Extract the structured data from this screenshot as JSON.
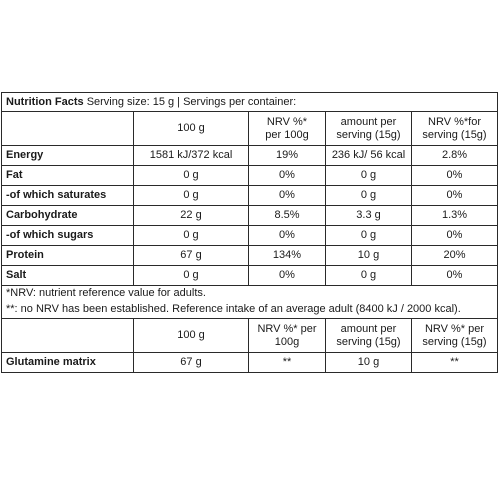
{
  "title": "Nutrition Facts",
  "serving_info": "Serving size: 15 g | Servings per container:",
  "header": {
    "col_100g": "100 g",
    "col_nrv100_l1": "NRV %*",
    "col_nrv100_l2": "per 100g",
    "col_serv_l1": "amount per",
    "col_serv_l2": "serving (15g)",
    "col_nrvserv_l1": "NRV %*for",
    "col_nrvserv_l2": "serving (15g)"
  },
  "rows": [
    {
      "name": "Energy",
      "per100": "1581 kJ/372 kcal",
      "nrv100": "19%",
      "serving": "236 kJ/ 56 kcal",
      "nrvserv": "2.8%"
    },
    {
      "name": "Fat",
      "per100": "0 g",
      "nrv100": "0%",
      "serving": "0 g",
      "nrvserv": "0%"
    },
    {
      "name": "-of which saturates",
      "per100": "0 g",
      "nrv100": "0%",
      "serving": "0 g",
      "nrvserv": "0%"
    },
    {
      "name": "Carbohydrate",
      "per100": "22 g",
      "nrv100": "8.5%",
      "serving": "3.3 g",
      "nrvserv": "1.3%"
    },
    {
      "name": "-of which sugars",
      "per100": "0 g",
      "nrv100": "0%",
      "serving": "0 g",
      "nrvserv": "0%"
    },
    {
      "name": "Protein",
      "per100": "67 g",
      "nrv100": "134%",
      "serving": "10 g",
      "nrvserv": "20%"
    },
    {
      "name": "Salt",
      "per100": "0 g",
      "nrv100": "0%",
      "serving": "0 g",
      "nrvserv": "0%"
    }
  ],
  "notes": {
    "nrv": "*NRV: nutrient reference value for adults.",
    "no_nrv": "**: no NRV has been established. Reference intake of an average adult (8400 kJ / 2000 kcal)."
  },
  "header2": {
    "col_100g": "100 g",
    "col_nrv100_l1": "NRV %* per",
    "col_nrv100_l2": "100g",
    "col_serv_l1": "amount per",
    "col_serv_l2": "serving (15g)",
    "col_nrvserv_l1": "NRV %* per",
    "col_nrvserv_l2": "serving (15g)"
  },
  "matrix_row": {
    "name": "Glutamine matrix",
    "per100": "67 g",
    "nrv100": "**",
    "serving": "10 g",
    "nrvserv": "**"
  }
}
